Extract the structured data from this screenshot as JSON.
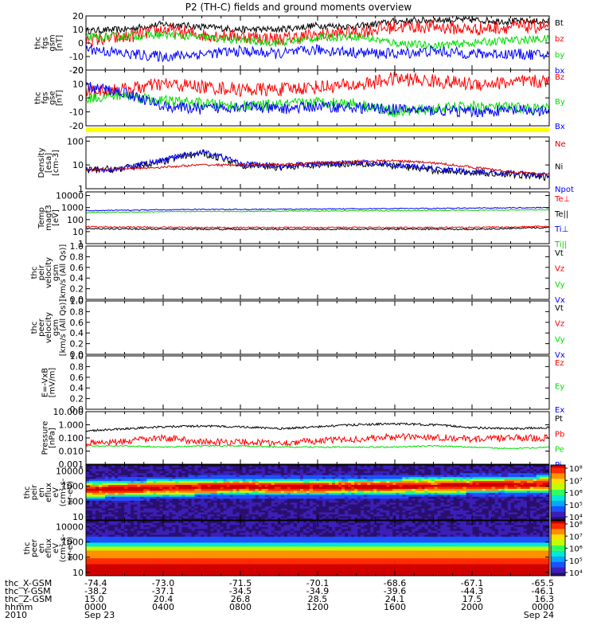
{
  "title": "P2 (TH-C) fields and ground moments overview",
  "colors": {
    "black": "#000000",
    "red": "#ff0000",
    "green": "#00dd00",
    "blue": "#0000ff",
    "yellow": "#ffff00",
    "darkred": "#d40000",
    "bandgreen": "#11cc00"
  },
  "chart_data": [
    {
      "type": "line",
      "id": "fgs_gsm",
      "ylabel": [
        "thc",
        "fgs",
        "gsm",
        "[nT]"
      ],
      "ylim": [
        -20,
        20
      ],
      "yticks": [
        20,
        10,
        0,
        -10,
        -20
      ],
      "legend": [
        {
          "text": "Bt",
          "color": "black"
        },
        {
          "text": "bz",
          "color": "red"
        },
        {
          "text": "by",
          "color": "green"
        },
        {
          "text": "bx",
          "color": "blue"
        }
      ],
      "x": [
        0,
        2,
        4,
        6,
        8,
        10,
        12,
        14,
        16,
        18,
        20,
        22,
        24
      ],
      "series": [
        {
          "name": "Bt",
          "color": "black",
          "values": [
            9,
            10,
            14,
            12,
            10,
            10,
            13,
            12,
            16,
            17,
            17,
            16,
            16
          ],
          "noise": 2.5
        },
        {
          "name": "bz",
          "color": "red",
          "values": [
            2,
            4,
            10,
            6,
            5,
            3,
            6,
            8,
            12,
            12,
            10,
            12,
            12
          ],
          "noise": 5
        },
        {
          "name": "by",
          "color": "green",
          "values": [
            4,
            5,
            6,
            4,
            2,
            0,
            4,
            5,
            0,
            -2,
            0,
            2,
            3
          ],
          "noise": 3
        },
        {
          "name": "bx",
          "color": "blue",
          "values": [
            -4,
            -8,
            -10,
            -8,
            -6,
            -8,
            -5,
            -7,
            -8,
            -6,
            -8,
            -8,
            -9
          ],
          "noise": 4
        }
      ]
    },
    {
      "type": "line",
      "id": "fgs_gse",
      "ylabel": [
        "thc",
        "fgs",
        "gse",
        "[nT]"
      ],
      "ylim": [
        -20,
        20
      ],
      "yticks": [
        20,
        10,
        0,
        -10,
        -20
      ],
      "legend": [
        {
          "text": "Bz",
          "color": "red"
        },
        {
          "text": "By",
          "color": "green"
        },
        {
          "text": "Bx",
          "color": "blue"
        }
      ],
      "x": [
        0,
        2,
        4,
        6,
        8,
        10,
        12,
        14,
        16,
        18,
        20,
        22,
        24
      ],
      "series": [
        {
          "name": "Bz",
          "color": "red",
          "values": [
            5,
            6,
            10,
            8,
            6,
            6,
            8,
            9,
            14,
            12,
            10,
            11,
            12
          ],
          "noise": 5
        },
        {
          "name": "By",
          "color": "green",
          "values": [
            0,
            2,
            -2,
            -4,
            -6,
            -5,
            -3,
            -4,
            -10,
            -8,
            -6,
            -7,
            -8
          ],
          "noise": 4
        },
        {
          "name": "Bx",
          "color": "blue",
          "values": [
            8,
            4,
            -6,
            -8,
            -6,
            -8,
            -6,
            -7,
            -8,
            -9,
            -10,
            -9,
            -10
          ],
          "noise": 4
        }
      ]
    },
    {
      "type": "band",
      "id": "flag_bar",
      "color": "yellow"
    },
    {
      "type": "line",
      "id": "density",
      "log": true,
      "ylabel": [
        "Density",
        "[esa]",
        "[cm-3]"
      ],
      "ylim": [
        1,
        150
      ],
      "yticks": [
        100,
        10,
        1
      ],
      "legend": [
        {
          "text": "Ne",
          "color": "darkred"
        },
        {
          "text": "Ni",
          "color": "black"
        },
        {
          "text": "Npot",
          "color": "blue"
        }
      ],
      "x": [
        0,
        2,
        4,
        6,
        8,
        10,
        12,
        14,
        16,
        18,
        20,
        22,
        24
      ],
      "series": [
        {
          "name": "Ni",
          "color": "black",
          "values": [
            6,
            7,
            14,
            30,
            10,
            8,
            10,
            12,
            9,
            6,
            5,
            4,
            3
          ],
          "noise": 0.15
        },
        {
          "name": "Npot",
          "color": "blue",
          "values": [
            6,
            7,
            15,
            35,
            11,
            9,
            11,
            13,
            10,
            7,
            5,
            4.5,
            3.5
          ],
          "noise": 0.12
        },
        {
          "name": "Ne",
          "color": "darkred",
          "values": [
            6,
            7,
            8,
            10,
            10,
            10,
            12,
            14,
            15,
            12,
            8,
            5,
            4
          ],
          "noise": 0.05
        }
      ]
    },
    {
      "type": "line",
      "id": "temperature",
      "log": true,
      "ylabel": [
        "Temp",
        "magt3",
        "[eV]"
      ],
      "ylim": [
        1,
        20000
      ],
      "yticks": [
        10000,
        1000,
        100,
        10,
        1
      ],
      "legend": [
        {
          "text": "Te⊥",
          "color": "red"
        },
        {
          "text": "Te||",
          "color": "black"
        },
        {
          "text": "Ti⊥",
          "color": "blue"
        },
        {
          "text": "Ti||",
          "color": "bandgreen"
        }
      ],
      "x": [
        0,
        2,
        4,
        6,
        8,
        10,
        12,
        14,
        16,
        18,
        20,
        22,
        24
      ],
      "series": [
        {
          "name": "Ti⊥",
          "color": "blue",
          "values": [
            550,
            600,
            650,
            700,
            700,
            720,
            750,
            800,
            800,
            850,
            900,
            950,
            1000
          ],
          "noise": 0.04
        },
        {
          "name": "Ti||",
          "color": "bandgreen",
          "values": [
            380,
            420,
            450,
            480,
            480,
            500,
            520,
            550,
            550,
            580,
            600,
            620,
            650
          ],
          "noise": 0.04
        },
        {
          "name": "Te⊥",
          "color": "red",
          "values": [
            25,
            24,
            23,
            22,
            22,
            22,
            22,
            22,
            22,
            22,
            22,
            24,
            28
          ],
          "noise": 0.06
        },
        {
          "name": "Te||",
          "color": "black",
          "values": [
            18,
            17,
            16,
            16,
            16,
            16,
            16,
            16,
            16,
            16,
            16,
            18,
            22
          ],
          "noise": 0.06
        }
      ]
    },
    {
      "type": "line",
      "id": "peir_velocity",
      "ylabel": [
        "thc",
        "peir",
        "velocity",
        "gsm",
        "[km/s (All Qs)]"
      ],
      "ylim": [
        0,
        1
      ],
      "yticks": [
        "1.0",
        "0.8",
        "0.6",
        "0.4",
        "0.2",
        "0.0"
      ],
      "legend": [
        {
          "text": "Vt",
          "color": "black"
        },
        {
          "text": "Vz",
          "color": "red"
        },
        {
          "text": "Vy",
          "color": "green"
        },
        {
          "text": "Vx",
          "color": "blue"
        }
      ],
      "series": []
    },
    {
      "type": "line",
      "id": "peer_velocity",
      "ylabel": [
        "thc",
        "peer",
        "velocity",
        "gsm",
        "[km/s (All Qs)]"
      ],
      "ylim": [
        0,
        1
      ],
      "yticks": [
        "1.0",
        "0.8",
        "0.6",
        "0.4",
        "0.2",
        "0.0"
      ],
      "legend": [
        {
          "text": "Vt",
          "color": "black"
        },
        {
          "text": "Vz",
          "color": "red"
        },
        {
          "text": "Vy",
          "color": "green"
        },
        {
          "text": "Vx",
          "color": "blue"
        }
      ],
      "series": []
    },
    {
      "type": "line",
      "id": "efield",
      "ylabel": [
        "E=-VxB",
        "[mV/m]"
      ],
      "ylim": [
        0,
        1
      ],
      "yticks": [
        "1.0",
        "0.8",
        "0.6",
        "0.4",
        "0.2",
        "0.0"
      ],
      "legend": [
        {
          "text": "Ez",
          "color": "red"
        },
        {
          "text": "Ey",
          "color": "green"
        },
        {
          "text": "Ex",
          "color": "blue"
        }
      ],
      "series": []
    },
    {
      "type": "line",
      "id": "pressure",
      "log": true,
      "ylabel": [
        "Pressure",
        "[nPa]"
      ],
      "ylim": [
        0.001,
        10
      ],
      "yticks": [
        "10.000",
        "1.000",
        "0.100",
        "0.010",
        "0.001"
      ],
      "legend": [
        {
          "text": "Pt",
          "color": "black"
        },
        {
          "text": "Pb",
          "color": "red"
        },
        {
          "text": "Pe",
          "color": "green"
        },
        {
          "text": "Pi",
          "color": "blue"
        }
      ],
      "x": [
        0,
        2,
        4,
        6,
        8,
        10,
        12,
        14,
        16,
        18,
        20,
        22,
        24
      ],
      "series": [
        {
          "name": "Pt",
          "color": "black",
          "values": [
            0.35,
            0.5,
            0.7,
            0.8,
            0.7,
            0.5,
            0.7,
            1.0,
            1.2,
            1.0,
            0.6,
            0.5,
            0.6
          ],
          "noise": 0.08
        },
        {
          "name": "Pb",
          "color": "red",
          "values": [
            0.04,
            0.05,
            0.1,
            0.05,
            0.05,
            0.04,
            0.06,
            0.08,
            0.12,
            0.12,
            0.08,
            0.1,
            0.1
          ],
          "noise": 0.25
        },
        {
          "name": "Pe",
          "color": "green",
          "values": [
            0.025,
            0.025,
            0.02,
            0.025,
            0.025,
            0.02,
            0.02,
            0.02,
            0.02,
            0.025,
            0.02,
            0.015,
            0.02
          ],
          "noise": 0.05
        }
      ]
    },
    {
      "type": "heatmap",
      "id": "peir_spec",
      "ylabel": [
        "thc",
        "peir",
        "en",
        "eflux",
        "eV",
        "(cm²-s-",
        "sr-eV)"
      ],
      "ylim": [
        6,
        25000
      ],
      "yticks": [
        10000,
        1000,
        100,
        10
      ],
      "colorbar": {
        "ticks": [
          "10⁸",
          "10⁷",
          "10⁶",
          "10⁵",
          "10⁴"
        ]
      },
      "peak_ev": [
        600,
        700,
        800,
        900,
        1000,
        900,
        900,
        1000,
        1000,
        1100,
        1200,
        1300,
        1400
      ]
    },
    {
      "type": "heatmap",
      "id": "peer_spec",
      "ylabel": [
        "thc",
        "peer",
        "en",
        "eflux",
        "eV",
        "(cm²-s-",
        "sr-eV)"
      ],
      "ylim": [
        6,
        25000
      ],
      "yticks": [
        10000,
        1000,
        100,
        10
      ],
      "colorbar": {
        "ticks": [
          "10⁸",
          "10⁷",
          "10⁶",
          "10⁵",
          "10⁴"
        ]
      },
      "peak_ev": [
        10,
        10,
        10,
        10,
        10,
        10,
        10,
        10,
        10,
        10,
        10,
        10,
        10
      ]
    }
  ],
  "footer": {
    "row_labels": [
      "thc_X-GSM",
      "thc_Y-GSM",
      "thc_Z-GSM",
      "hhmm",
      "2010"
    ],
    "columns": [
      {
        "x": [
          "-74.4",
          "-38.2",
          "15.0",
          "0000",
          "Sep 23"
        ]
      },
      {
        "x": [
          "-73.0",
          "-37.1",
          "20.4",
          "0400",
          ""
        ]
      },
      {
        "x": [
          "-71.5",
          "-34.5",
          "26.8",
          "0800",
          ""
        ]
      },
      {
        "x": [
          "-70.1",
          "-34.9",
          "28.5",
          "1200",
          ""
        ]
      },
      {
        "x": [
          "-68.6",
          "-39.6",
          "24.1",
          "1600",
          ""
        ]
      },
      {
        "x": [
          "-67.1",
          "-44.3",
          "17.5",
          "2000",
          ""
        ]
      },
      {
        "x": [
          "-65.5",
          "-46.1",
          "16.3",
          "0000",
          "Sep 24"
        ]
      }
    ]
  }
}
